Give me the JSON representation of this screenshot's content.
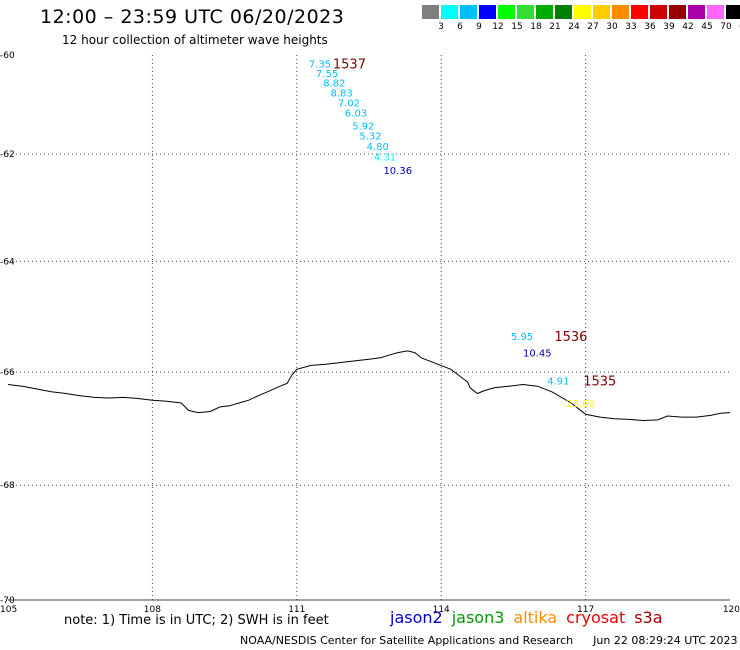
{
  "header": {
    "title": "12:00 – 23:59 UTC 06/20/2023",
    "subtitle": "12 hour collection of altimeter wave heights"
  },
  "scale": {
    "unit": "(ft)",
    "bins": [
      {
        "label": "",
        "color": "#7f7f7f"
      },
      {
        "label": "3",
        "color": "#00ffff"
      },
      {
        "label": "6",
        "color": "#00bfff"
      },
      {
        "label": "9",
        "color": "#0000ff"
      },
      {
        "label": "12",
        "color": "#00ff00"
      },
      {
        "label": "15",
        "color": "#33dd33"
      },
      {
        "label": "18",
        "color": "#00aa00"
      },
      {
        "label": "21",
        "color": "#007f00"
      },
      {
        "label": "24",
        "color": "#ffff00"
      },
      {
        "label": "27",
        "color": "#ffcc00"
      },
      {
        "label": "30",
        "color": "#ff8c00"
      },
      {
        "label": "33",
        "color": "#ff0000"
      },
      {
        "label": "36",
        "color": "#cc0000"
      },
      {
        "label": "39",
        "color": "#990000"
      },
      {
        "label": "42",
        "color": "#aa00aa"
      },
      {
        "label": "45",
        "color": "#ff66ff"
      },
      {
        "label": "70",
        "color": "#000000"
      }
    ]
  },
  "map": {
    "lon_range": [
      105,
      120
    ],
    "lat_range": [
      -70,
      -60
    ],
    "lat_labels": [
      "-60",
      "-62",
      "-64",
      "-66",
      "-68",
      "-70"
    ],
    "lon_labels": [
      "105",
      "108",
      "111",
      "114",
      "117",
      "120"
    ],
    "coastline_color": "#000000",
    "grid_color": "#444444"
  },
  "passes": [
    {
      "id": "1537",
      "lon": 111.75,
      "lat": -60.2
    },
    {
      "id": "1536",
      "lon": 116.35,
      "lat": -65.35
    },
    {
      "id": "1535",
      "lon": 116.95,
      "lat": -66.15
    }
  ],
  "observations": [
    {
      "value": "7.35",
      "lon": 111.25,
      "lat": -60.2,
      "color": "#00bfff"
    },
    {
      "value": "7.55",
      "lon": 111.4,
      "lat": -60.4,
      "color": "#00bfff"
    },
    {
      "value": "8.82",
      "lon": 111.55,
      "lat": -60.6,
      "color": "#00bfff"
    },
    {
      "value": "8.83",
      "lon": 111.7,
      "lat": -60.8,
      "color": "#00bfff"
    },
    {
      "value": "7.02",
      "lon": 111.85,
      "lat": -61.0,
      "color": "#00bfff"
    },
    {
      "value": "6.03",
      "lon": 112.0,
      "lat": -61.2,
      "color": "#00bfff"
    },
    {
      "value": "5.92",
      "lon": 112.15,
      "lat": -61.45,
      "color": "#00bfff"
    },
    {
      "value": "5.32",
      "lon": 112.3,
      "lat": -61.65,
      "color": "#00bfff"
    },
    {
      "value": "4.80",
      "lon": 112.45,
      "lat": -61.85,
      "color": "#00bfff"
    },
    {
      "value": "4.31",
      "lon": 112.6,
      "lat": -62.05,
      "color": "#00ffff"
    },
    {
      "value": "10.36",
      "lon": 112.8,
      "lat": -62.3,
      "color": "#0000aa"
    },
    {
      "value": "5.95",
      "lon": 115.45,
      "lat": -65.35,
      "color": "#00bfff"
    },
    {
      "value": "10.45",
      "lon": 115.7,
      "lat": -65.65,
      "color": "#0000aa"
    },
    {
      "value": "4.91",
      "lon": 116.2,
      "lat": -66.15,
      "color": "#00bfff"
    },
    {
      "value": "23.60",
      "lon": 116.6,
      "lat": -66.55,
      "color": "#ffff00"
    }
  ],
  "coastline": [
    [
      105.0,
      -66.22
    ],
    [
      105.3,
      -66.25
    ],
    [
      105.6,
      -66.3
    ],
    [
      105.9,
      -66.35
    ],
    [
      106.2,
      -66.38
    ],
    [
      106.5,
      -66.42
    ],
    [
      106.8,
      -66.45
    ],
    [
      107.1,
      -66.46
    ],
    [
      107.4,
      -66.45
    ],
    [
      107.7,
      -66.47
    ],
    [
      108.0,
      -66.5
    ],
    [
      108.3,
      -66.52
    ],
    [
      108.6,
      -66.55
    ],
    [
      108.75,
      -66.68
    ],
    [
      108.95,
      -66.72
    ],
    [
      109.2,
      -66.7
    ],
    [
      109.4,
      -66.62
    ],
    [
      109.6,
      -66.6
    ],
    [
      109.8,
      -66.55
    ],
    [
      110.0,
      -66.5
    ],
    [
      110.2,
      -66.42
    ],
    [
      110.45,
      -66.33
    ],
    [
      110.65,
      -66.25
    ],
    [
      110.8,
      -66.2
    ],
    [
      110.9,
      -66.05
    ],
    [
      111.0,
      -65.95
    ],
    [
      111.3,
      -65.88
    ],
    [
      111.6,
      -65.86
    ],
    [
      111.9,
      -65.83
    ],
    [
      112.2,
      -65.8
    ],
    [
      112.5,
      -65.77
    ],
    [
      112.75,
      -65.74
    ],
    [
      112.9,
      -65.7
    ],
    [
      113.1,
      -65.65
    ],
    [
      113.3,
      -65.62
    ],
    [
      113.45,
      -65.65
    ],
    [
      113.6,
      -65.75
    ],
    [
      113.9,
      -65.85
    ],
    [
      114.2,
      -65.95
    ],
    [
      114.4,
      -66.08
    ],
    [
      114.55,
      -66.18
    ],
    [
      114.6,
      -66.28
    ],
    [
      114.75,
      -66.38
    ],
    [
      114.9,
      -66.33
    ],
    [
      115.1,
      -66.28
    ],
    [
      115.4,
      -66.25
    ],
    [
      115.7,
      -66.22
    ],
    [
      116.0,
      -66.25
    ],
    [
      116.3,
      -66.35
    ],
    [
      116.5,
      -66.45
    ],
    [
      116.7,
      -66.55
    ],
    [
      116.85,
      -66.65
    ],
    [
      117.0,
      -66.75
    ],
    [
      117.3,
      -66.8
    ],
    [
      117.6,
      -66.83
    ],
    [
      117.9,
      -66.84
    ],
    [
      118.2,
      -66.86
    ],
    [
      118.5,
      -66.85
    ],
    [
      118.7,
      -66.78
    ],
    [
      119.0,
      -66.8
    ],
    [
      119.3,
      -66.8
    ],
    [
      119.6,
      -66.77
    ],
    [
      119.8,
      -66.73
    ],
    [
      120.0,
      -66.72
    ]
  ],
  "note": "note: 1) Time is in UTC; 2) SWH is in feet",
  "legend": [
    {
      "label": "jason2",
      "color": "#0000cc"
    },
    {
      "label": "jason3",
      "color": "#009900"
    },
    {
      "label": "altika",
      "color": "#ff8c00"
    },
    {
      "label": "cryosat",
      "color": "#ee0000"
    },
    {
      "label": "s3a",
      "color": "#990000"
    }
  ],
  "footer": {
    "credit": "NOAA/NESDIS Center for Satellite Applications and Research",
    "timestamp": "Jun 22 08:29:24 UTC 2023"
  }
}
